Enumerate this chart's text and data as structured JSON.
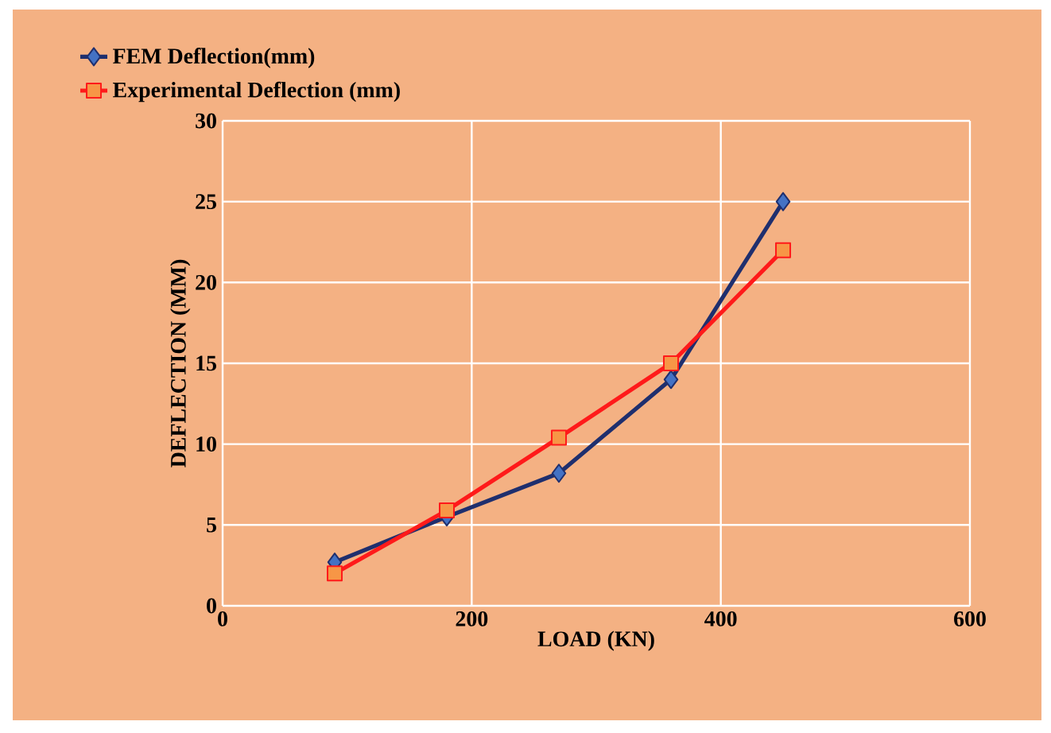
{
  "chart_data": {
    "type": "line",
    "xlabel": "LOAD (KN)",
    "ylabel": "DEFLECTION (MM)",
    "x": [
      90,
      180,
      270,
      360,
      450
    ],
    "series": [
      {
        "name": "FEM Deflection(mm)",
        "color": "#1f2f6e",
        "marker": "diamond",
        "values": [
          2.7,
          5.5,
          8.2,
          14,
          25
        ]
      },
      {
        "name": "Experimental Deflection (mm)",
        "color": "#ff1a1a",
        "marker": "square",
        "values": [
          2,
          5.9,
          10.4,
          15,
          22
        ]
      }
    ],
    "xlim": [
      0,
      600
    ],
    "xticks": [
      0,
      200,
      400,
      600
    ],
    "ylim": [
      0,
      30
    ],
    "yticks": [
      0,
      5,
      10,
      15,
      20,
      25,
      30
    ],
    "grid": true,
    "legend": "top"
  }
}
